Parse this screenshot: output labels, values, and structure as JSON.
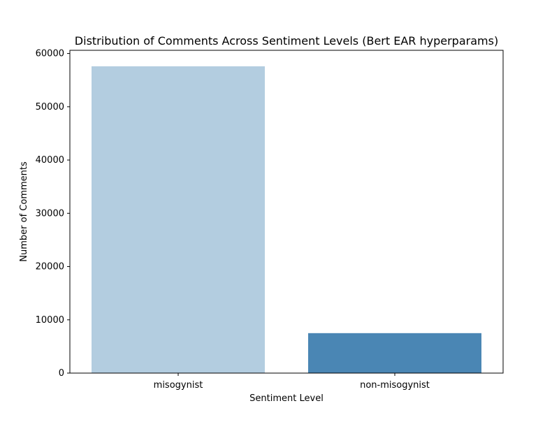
{
  "chart_data": {
    "type": "bar",
    "title": "Distribution of Comments Across Sentiment Levels (Bert EAR hyperparams)",
    "xlabel": "Sentiment Level",
    "ylabel": "Number of Comments",
    "categories": [
      "misogynist",
      "non-misogynist"
    ],
    "values": [
      57600,
      7500
    ],
    "colors": [
      "#b3cde0",
      "#4a86b4"
    ],
    "ylim": [
      0,
      60600
    ],
    "yticks": [
      0,
      10000,
      20000,
      30000,
      40000,
      50000,
      60000
    ],
    "grid": false,
    "legend": "none"
  }
}
